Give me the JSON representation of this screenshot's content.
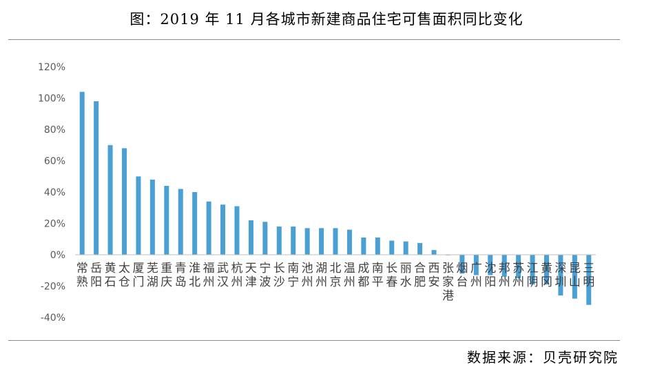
{
  "title": "图：2019 年 11 月各城市新建商品住宅可售面积同比变化",
  "source": "数据来源：贝壳研究院",
  "chart_data": {
    "type": "bar",
    "title": "图：2019 年 11 月各城市新建商品住宅可售面积同比变化",
    "xlabel": "",
    "ylabel": "",
    "ylim": [
      -40,
      120
    ],
    "yticks": [
      "120%",
      "100%",
      "80%",
      "60%",
      "40%",
      "20%",
      "0%",
      "-20%",
      "-40%"
    ],
    "grid": false,
    "bar_color": "#4a9fd5",
    "categories": [
      "常熟",
      "岳阳",
      "黄石",
      "太仓",
      "厦门",
      "芜湖",
      "重庆",
      "青岛",
      "淮北",
      "福州",
      "武汉",
      "杭州",
      "天津",
      "宁波",
      "长沙",
      "南宁",
      "池州",
      "湖州",
      "北京",
      "温州",
      "成都",
      "南平",
      "长春",
      "丽水",
      "合肥",
      "西安",
      "张家港",
      "烟台",
      "广州",
      "沈阳",
      "邦州",
      "苏州",
      "江阴",
      "黄冈",
      "深圳",
      "昆山",
      "三明"
    ],
    "values": [
      104,
      98,
      70,
      68,
      50,
      48,
      44,
      42,
      40,
      34,
      32,
      31,
      22,
      21,
      18,
      18,
      17,
      17,
      17,
      16,
      11,
      11,
      9,
      8.5,
      7.5,
      3,
      0,
      -12,
      -13,
      -13,
      -14,
      -15,
      -19,
      -19,
      -26,
      -28,
      -32
    ]
  }
}
